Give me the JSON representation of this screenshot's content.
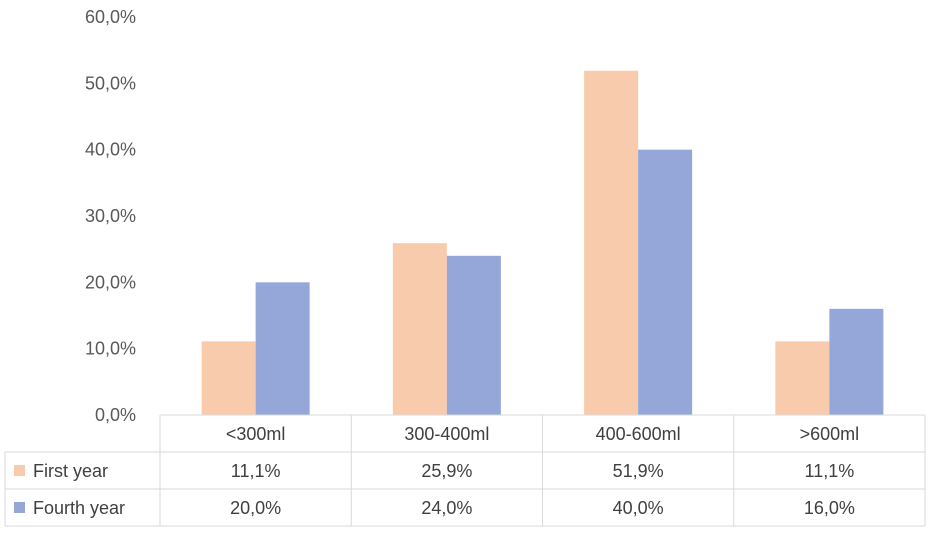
{
  "chart_data": {
    "type": "bar",
    "title": "",
    "xlabel": "",
    "ylabel": "",
    "ylim": [
      0,
      60
    ],
    "ytick_step": 10,
    "ytick_labels": [
      "0,0%",
      "10,0%",
      "20,0%",
      "30,0%",
      "40,0%",
      "50,0%",
      "60,0%"
    ],
    "grid": false,
    "legend": "data-table",
    "categories": [
      "<300ml",
      "300-400ml",
      "400-600ml",
      ">600ml"
    ],
    "series": [
      {
        "name": "First year",
        "color": "#f8cbad",
        "values": [
          11.1,
          25.9,
          51.9,
          11.1
        ],
        "labels": [
          "11,1%",
          "25,9%",
          "51,9%",
          "11,1%"
        ]
      },
      {
        "name": "Fourth year",
        "color": "#95a7d8",
        "values": [
          20.0,
          24.0,
          40.0,
          16.0
        ],
        "labels": [
          "20,0%",
          "24,0%",
          "40,0%",
          "16,0%"
        ]
      }
    ]
  }
}
